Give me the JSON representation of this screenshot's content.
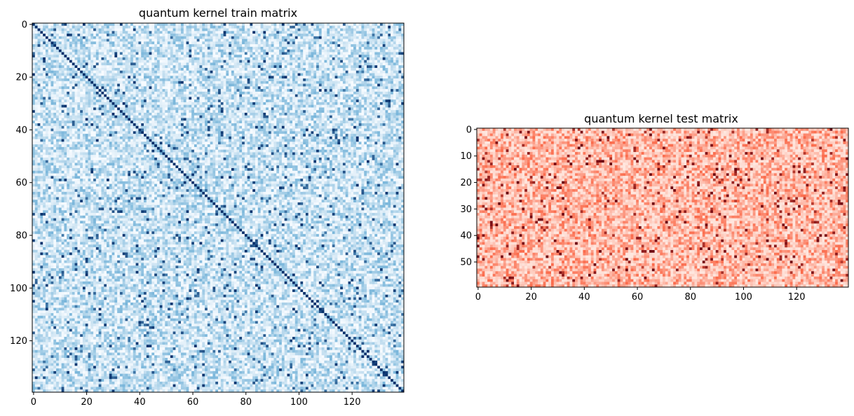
{
  "chart_data": [
    {
      "type": "heatmap",
      "title": "quantum kernel train matrix",
      "xlabel": "",
      "ylabel": "",
      "rows": 140,
      "cols": 140,
      "xlim": [
        0,
        139
      ],
      "ylim": [
        139,
        0
      ],
      "x_ticks": [
        0,
        20,
        40,
        60,
        80,
        100,
        120
      ],
      "y_ticks": [
        0,
        20,
        40,
        60,
        80,
        100,
        120
      ],
      "colormap": "Blues",
      "value_range": [
        0,
        1
      ],
      "diagonal_value": 1.0,
      "off_diagonal_typical_range": [
        0.0,
        0.45
      ],
      "off_diagonal_high_values": [
        0.7,
        1.0
      ],
      "colors": {
        "low": "#f7fbff",
        "mid": "#6baed6",
        "high": "#08306b"
      },
      "grid": false,
      "legend": "none"
    },
    {
      "type": "heatmap",
      "title": "quantum kernel test matrix",
      "xlabel": "",
      "ylabel": "",
      "rows": 60,
      "cols": 140,
      "xlim": [
        0,
        139
      ],
      "ylim": [
        59,
        0
      ],
      "x_ticks": [
        0,
        20,
        40,
        60,
        80,
        100,
        120
      ],
      "y_ticks": [
        0,
        10,
        20,
        30,
        40,
        50
      ],
      "colormap": "Reds",
      "value_range": [
        0,
        1
      ],
      "off_diagonal_typical_range": [
        0.05,
        0.5
      ],
      "off_diagonal_high_values": [
        0.7,
        1.0
      ],
      "colors": {
        "low": "#fff5f0",
        "mid": "#fb6a4a",
        "high": "#67000d"
      },
      "grid": false,
      "legend": "none"
    }
  ]
}
